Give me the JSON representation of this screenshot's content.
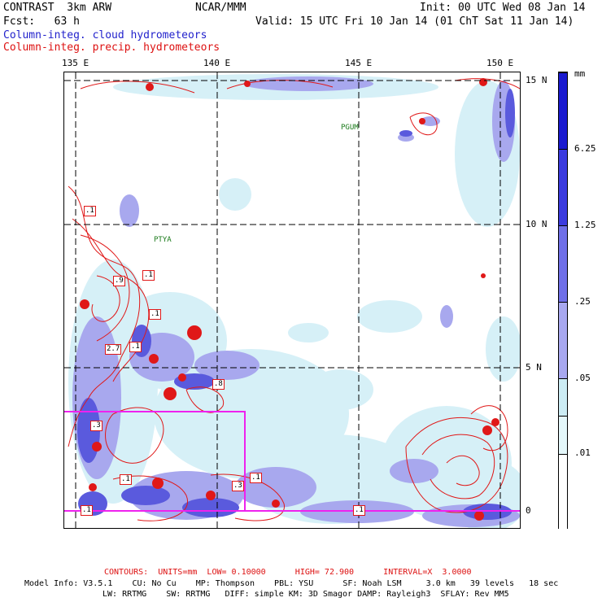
{
  "header": {
    "line1_left": "CONTRAST  3km ARW",
    "line1_mid": "NCAR/MMM",
    "line1_right": "Init: 00 UTC Wed 08 Jan 14",
    "line2_left": "Fcst:   63 h",
    "line2_right": "Valid: 15 UTC Fri 10 Jan 14 (01 ChT Sat 11 Jan 14)",
    "legend_cloud": "Column-integ. cloud hydrometeors",
    "legend_precip": "Column-integ. precip. hydrometeors"
  },
  "axes": {
    "lon_labels": [
      "135 E",
      "140 E",
      "145 E",
      "150 E"
    ],
    "lat_labels": [
      "15 N",
      "10 N",
      "5 N",
      "0"
    ]
  },
  "places": [
    "PGUM",
    "PTYA"
  ],
  "contour_labels": [
    ".1",
    ".9",
    ".1",
    ".1",
    "2.7",
    ".1",
    ".8",
    ".3",
    ".1",
    ".3",
    ".1",
    ".1",
    ".1"
  ],
  "colorbar": {
    "unit": "mm",
    "levels": [
      "6.25",
      "1.25",
      ".25",
      ".05",
      ".01"
    ],
    "colors": [
      "#1a1ad0",
      "#3b3bdf",
      "#6f6fe8",
      "#a8a8f0",
      "#ccecf4",
      "#e4f7fa",
      "#ffffff"
    ]
  },
  "colors": {
    "cloud_light": "#d6f0f7",
    "cloud_mid": "#a8a8ee",
    "cloud_dark": "#5a5add",
    "precip": "#e01818",
    "box": "#ee22ee"
  },
  "footer": {
    "contours": "CONTOURS:  UNITS=mm  LOW= 0.10000      HIGH= 72.900      INTERVAL=X  3.0000",
    "model1": "Model Info: V3.5.1    CU: No Cu    MP: Thompson    PBL: YSU      SF: Noah LSM     3.0 km   39 levels   18 sec",
    "model2": "LW: RRTMG    SW: RRTMG   DIFF: simple KM: 3D Smagor DAMP: Rayleigh3  SFLAY: Rev MM5"
  }
}
